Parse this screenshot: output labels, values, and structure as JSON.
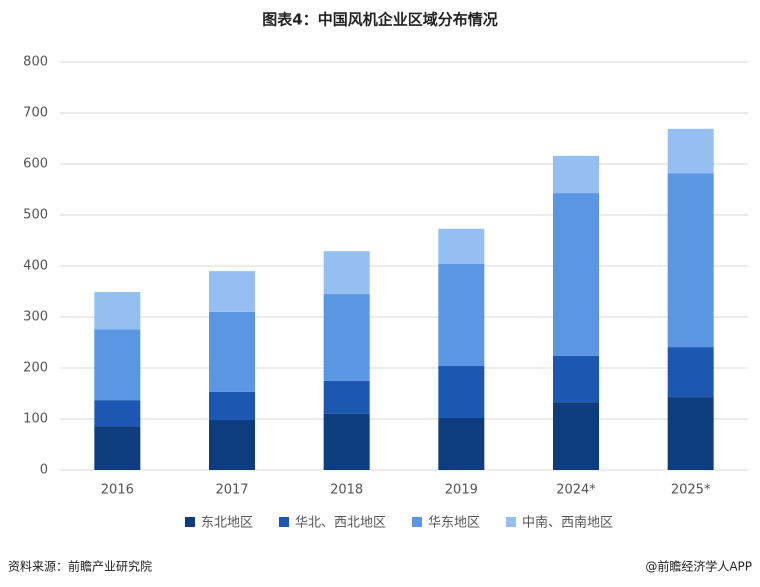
{
  "chart_data": {
    "type": "stacked_bar",
    "title": "图表4：中国风机企业区域分布情况",
    "categories": [
      "2016",
      "2017",
      "2018",
      "2019",
      "2024*",
      "2025*"
    ],
    "series": [
      {
        "name": "东北地区",
        "color": "#0e3d7e",
        "values": [
          86,
          98,
          110,
          102,
          133,
          143
        ]
      },
      {
        "name": "华北、西北地区",
        "color": "#1c58b2",
        "values": [
          51,
          55,
          65,
          102,
          91,
          98
        ]
      },
      {
        "name": "华东地区",
        "color": "#5b96e2",
        "values": [
          139,
          157,
          170,
          200,
          319,
          341
        ]
      },
      {
        "name": "中南、西南地区",
        "color": "#95bff0",
        "values": [
          73,
          80,
          84,
          69,
          73,
          87
        ]
      }
    ],
    "ylim": [
      0,
      800
    ],
    "yticks": [
      0,
      100,
      200,
      300,
      400,
      500,
      600,
      700,
      800
    ],
    "grid": true,
    "legend": "bottom"
  },
  "footer": {
    "source": "资料来源：前瞻产业研究院",
    "credit": "@前瞻经济学人APP"
  }
}
